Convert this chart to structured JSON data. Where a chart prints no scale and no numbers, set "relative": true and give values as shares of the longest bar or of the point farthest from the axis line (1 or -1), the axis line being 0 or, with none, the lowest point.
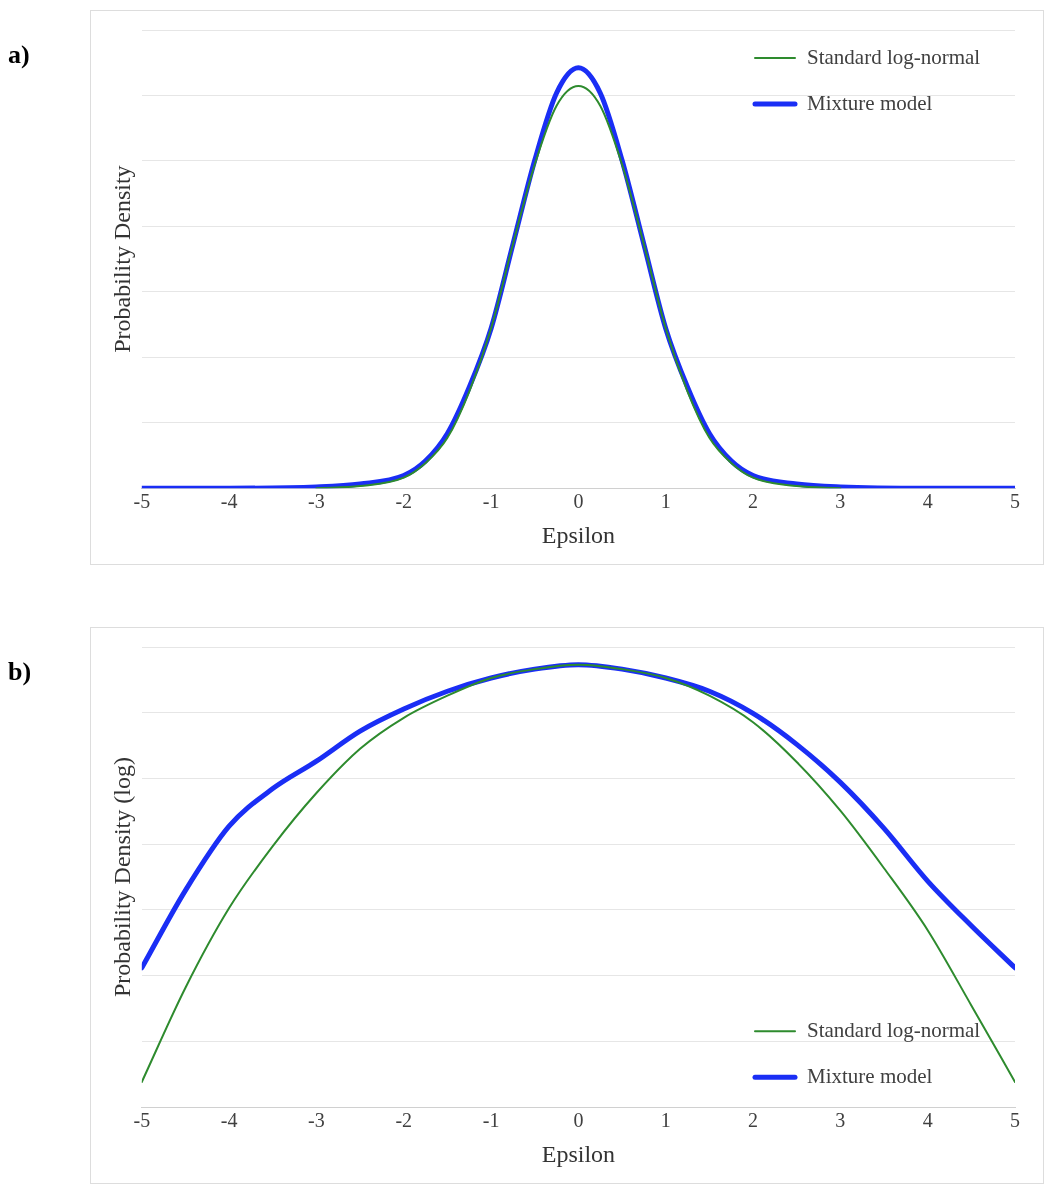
{
  "chart_data": [
    {
      "type": "line",
      "annotations": [
        "a)"
      ],
      "xlabel": "Epsilon",
      "ylabel": "Probability Density",
      "relative": true,
      "xlim": [
        -5,
        5
      ],
      "xticks": [
        -5,
        -4,
        -3,
        -2,
        -1,
        0,
        1,
        2,
        3,
        4,
        5
      ],
      "grid": "y",
      "legend": "top right",
      "marker": "none",
      "x": [
        -5,
        -4,
        -3,
        -2.5,
        -2,
        -1.75,
        -1.5,
        -1.25,
        -1,
        -0.75,
        -0.5,
        -0.25,
        0,
        0.25,
        0.5,
        0.75,
        1,
        1.25,
        1.5,
        1.75,
        2,
        2.5,
        3,
        4,
        5
      ],
      "series": [
        {
          "name": "Standard log-normal",
          "color": "#2e8b2e",
          "values": [
            null,
            null,
            0,
            0.005,
            0.025,
            0.06,
            0.12,
            0.23,
            0.38,
            0.58,
            0.77,
            0.91,
            0.957,
            0.91,
            0.77,
            0.58,
            0.38,
            0.23,
            0.12,
            0.06,
            0.025,
            0.005,
            0,
            null,
            null
          ]
        },
        {
          "name": "Mixture model",
          "color": "#1a2ef5",
          "values": [
            0,
            0,
            0.003,
            0.01,
            0.03,
            0.065,
            0.13,
            0.24,
            0.38,
            0.58,
            0.78,
            0.94,
            1,
            0.94,
            0.78,
            0.58,
            0.38,
            0.24,
            0.13,
            0.065,
            0.03,
            0.01,
            0.003,
            0,
            0
          ]
        }
      ]
    },
    {
      "type": "line",
      "annotations": [
        "b)"
      ],
      "xlabel": "Epsilon",
      "ylabel": "Probability Density (log)",
      "relative": true,
      "xlim": [
        -5,
        5
      ],
      "xticks": [
        -5,
        -4,
        -3,
        -2,
        -1,
        0,
        1,
        2,
        3,
        4,
        5
      ],
      "grid": "y",
      "legend": "bottom right",
      "marker": "none",
      "x": [
        -5,
        -4.5,
        -4,
        -3.5,
        -3,
        -2.5,
        -2,
        -1.5,
        -1,
        -0.5,
        0,
        0.5,
        1,
        1.5,
        2,
        2.5,
        3,
        3.5,
        4,
        4.5,
        5
      ],
      "series": [
        {
          "name": "Standard log-normal",
          "color": "#2e8b2e",
          "values": [
            0.057,
            0.27,
            0.45,
            0.59,
            0.71,
            0.81,
            0.88,
            0.93,
            0.97,
            0.99,
            1,
            0.99,
            0.97,
            0.93,
            0.87,
            0.78,
            0.67,
            0.54,
            0.4,
            0.23,
            0.057
          ]
        },
        {
          "name": "Mixture model",
          "color": "#1a2ef5",
          "values": [
            0.315,
            0.49,
            0.635,
            0.72,
            0.782,
            0.85,
            0.9,
            0.94,
            0.97,
            0.99,
            1,
            0.99,
            0.97,
            0.94,
            0.89,
            0.82,
            0.734,
            0.63,
            0.511,
            0.41,
            0.315
          ]
        }
      ]
    }
  ]
}
